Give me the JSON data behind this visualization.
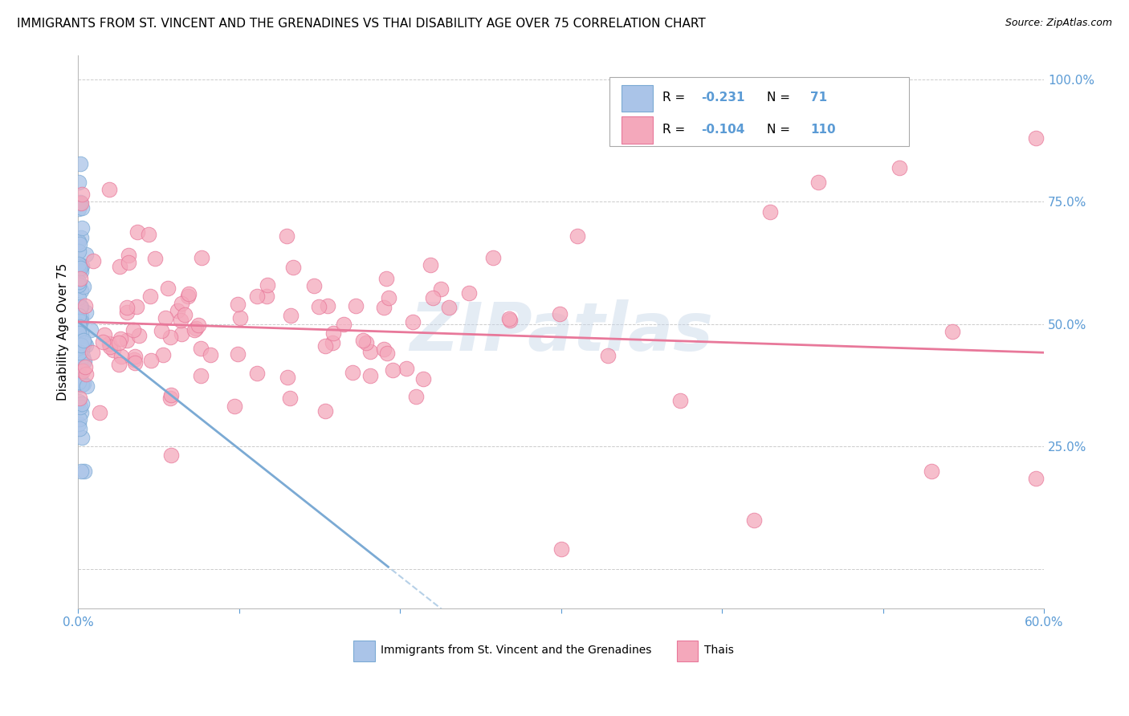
{
  "title": "IMMIGRANTS FROM ST. VINCENT AND THE GRENADINES VS THAI DISABILITY AGE OVER 75 CORRELATION CHART",
  "source": "Source: ZipAtlas.com",
  "ylabel": "Disability Age Over 75",
  "watermark": "ZIPatlas",
  "xlim": [
    0.0,
    0.6
  ],
  "ylim": [
    0.0,
    1.05
  ],
  "blue_color": "#7baad4",
  "pink_color": "#e8789a",
  "blue_scatter_color": "#aac4e8",
  "pink_scatter_color": "#f4a8bb",
  "grid_color": "#cccccc",
  "axis_color": "#5b9bd5",
  "title_fontsize": 11,
  "source_fontsize": 9,
  "watermark_color": "#c5d5e8",
  "watermark_fontsize": 60,
  "legend_R1": "-0.231",
  "legend_N1": "71",
  "legend_R2": "-0.104",
  "legend_N2": "110",
  "label1": "Immigrants from St. Vincent and the Grenadines",
  "label2": "Thais"
}
